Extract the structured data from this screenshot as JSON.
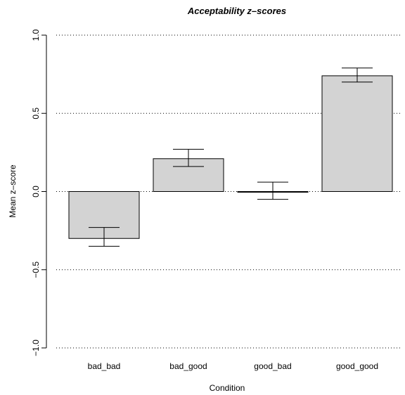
{
  "chart_data": {
    "type": "bar",
    "title": "Acceptability z–scores",
    "xlabel": "Condition",
    "ylabel": "Mean z–score",
    "categories": [
      "bad_bad",
      "bad_good",
      "good_bad",
      "good_good"
    ],
    "values": [
      -0.3,
      0.21,
      0.0,
      0.74
    ],
    "error_low": [
      -0.35,
      0.16,
      -0.05,
      0.7
    ],
    "error_high": [
      -0.23,
      0.27,
      0.06,
      0.79
    ],
    "ylim": [
      -1.0,
      1.0
    ],
    "yticks": [
      -1.0,
      -0.5,
      0.0,
      0.5,
      1.0
    ],
    "ytick_labels": [
      "−1.0",
      "−0.5",
      "0.0",
      "0.5",
      "1.0"
    ],
    "grid": "horizontal dotted at y ticks",
    "colors": {
      "bar_fill": "#d3d3d3",
      "bar_stroke": "#000000"
    }
  }
}
